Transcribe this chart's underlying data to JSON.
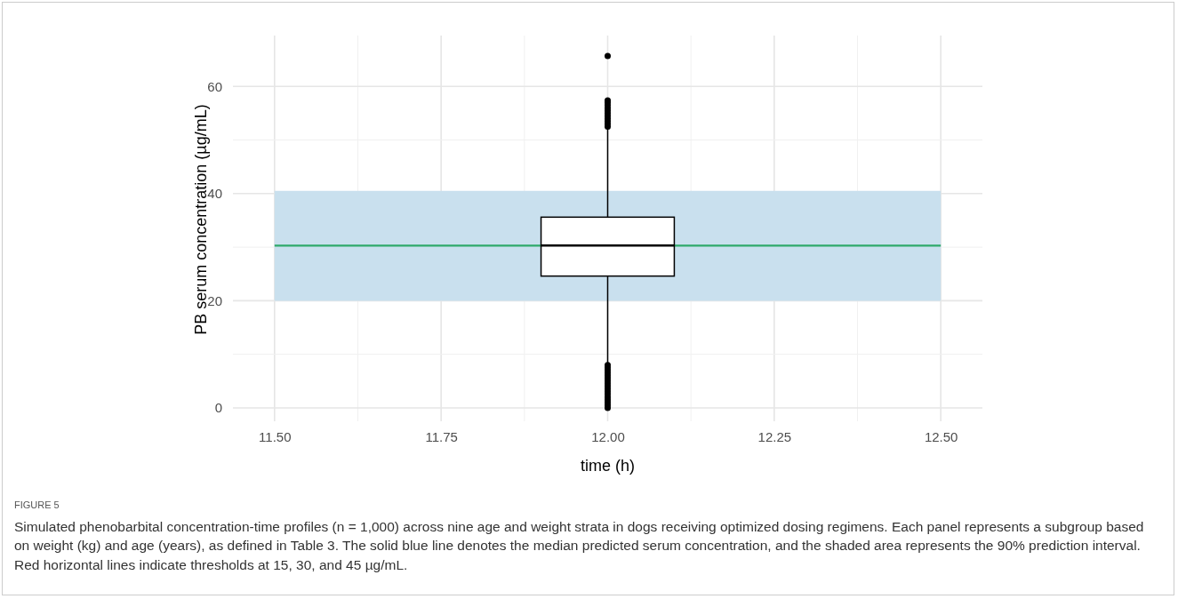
{
  "chart_data": {
    "type": "box",
    "title": "FIGURE 5",
    "xlabel": "time (h)",
    "ylabel": "PB serum concentration (µg/mL)",
    "categories": [
      "11.50",
      "11.75",
      "12.00",
      "12.25",
      "12.50"
    ],
    "boxes": [
      null,
      null,
      {
        "low": 8.2,
        "q1": 24.6,
        "median": 30.3,
        "q3": 35.6,
        "high": 52,
        "outliers": [
          0,
          0.5,
          1,
          1.5,
          2,
          2.5,
          3,
          3.5,
          4,
          4.5,
          5,
          5.5,
          6,
          6.5,
          7,
          7.5,
          8,
          52.5,
          53,
          53.5,
          54,
          54.5,
          55,
          55.5,
          56,
          56.5,
          57,
          57.4,
          65.7
        ]
      },
      null,
      null
    ],
    "color": "#ffffff",
    "series": [
      {
        "type": "line",
        "color": "#2eaa6a",
        "values": [
          30.3,
          30.3,
          null,
          30.3,
          30.3
        ],
        "lower": [
          20,
          20,
          20,
          20,
          20
        ],
        "upper": [
          40.5,
          40.5,
          40.5,
          40.5,
          40.5
        ]
      }
    ],
    "ylim": [
      -2.5,
      69.5
    ],
    "yticks": [
      0,
      20,
      40,
      60
    ],
    "grid": true,
    "annotations": [
      "Simulated phenobarbital concentration-time profiles (n = 1,000) across nine age and weight strata in dogs receiving optimized dosing regimens. Each panel represents a subgroup based on weight (kg) and age (years), as defined in Table 3. The solid blue line denotes the median predicted serum concentration, and the shaded area represents the 90% prediction interval. Red horizontal lines indicate thresholds at 15, 30, and 45 µg/mL."
    ]
  }
}
